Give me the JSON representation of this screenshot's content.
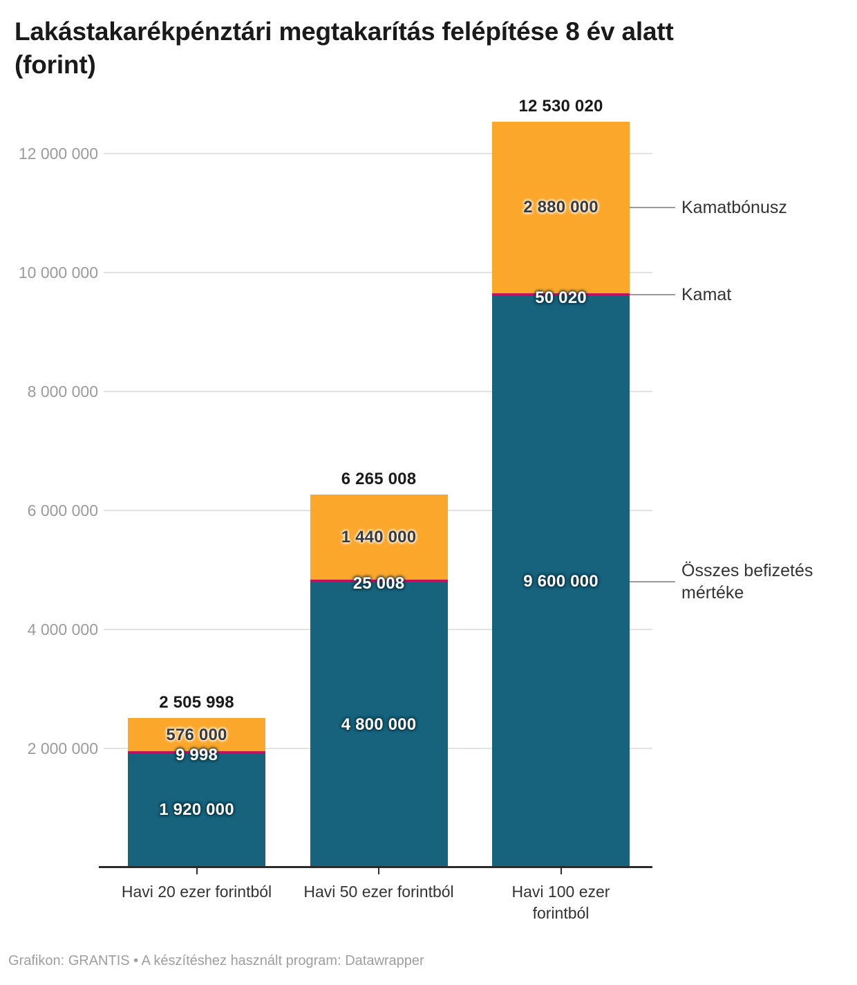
{
  "title": {
    "line1": "Lakástakarékpénztári megtakarítás felépítése 8 év alatt",
    "line2": "(forint)"
  },
  "footer": "Grafikon: GRANTIS • A készítéshez használt program: Datawrapper",
  "colors": {
    "deposit": "#17637D",
    "interest": "#C2125E",
    "bonus": "#FAA72B",
    "grid_line": "#e3e3e3",
    "axis_line": "#2b2b2b",
    "y_tick_label": "#9b9b9b",
    "category_label": "#333333",
    "annotation_text": "#333333",
    "annotation_line": "#9a9a9a",
    "footer_text": "#9e9e9e"
  },
  "chart_data": {
    "type": "bar",
    "stacked": true,
    "title": "Lakástakarékpénztári megtakarítás felépítése 8 év alatt (forint)",
    "unit": "forint",
    "grid": true,
    "legend_position": "right-annotations",
    "categories": [
      "Havi 20 ezer forintból",
      "Havi 50 ezer forintból",
      "Havi 100 ezer forintból"
    ],
    "category_label_lines": [
      [
        "Havi 20 ezer forintból"
      ],
      [
        "Havi 50 ezer forintból"
      ],
      [
        "Havi 100 ezer",
        "forintból"
      ]
    ],
    "series": [
      {
        "name": "Összes befizetés mértéke",
        "color_key": "deposit",
        "values": [
          1920000,
          4800000,
          9600000
        ],
        "value_labels": [
          "1 920 000",
          "4 800 000",
          "9 600 000"
        ],
        "label_style": "light"
      },
      {
        "name": "Kamat",
        "color_key": "interest",
        "values": [
          9998,
          25008,
          50020
        ],
        "value_labels": [
          "9 998",
          "25 008",
          "50 020"
        ],
        "label_style": "light"
      },
      {
        "name": "Kamatbónusz",
        "color_key": "bonus",
        "values": [
          576000,
          1440000,
          2880000
        ],
        "value_labels": [
          "576 000",
          "1 440 000",
          "2 880 000"
        ],
        "label_style": "dark"
      }
    ],
    "totals": [
      2505998,
      6265008,
      12530020
    ],
    "total_labels": [
      "2 505 998",
      "6 265 008",
      "12 530 020"
    ],
    "y_axis": {
      "ticks": [
        2000000,
        4000000,
        6000000,
        8000000,
        10000000,
        12000000
      ],
      "tick_labels": [
        "2 000 000",
        "4 000 000",
        "6 000 000",
        "8 000 000",
        "10 000 000",
        "12 000 000"
      ],
      "range": [
        0,
        12600000
      ]
    },
    "annotations": [
      {
        "label": "Kamatbónusz",
        "series_index": 2
      },
      {
        "label": "Kamat",
        "series_index": 1
      },
      {
        "label": "Összes befizetés mértéke",
        "series_index": 0
      }
    ]
  }
}
